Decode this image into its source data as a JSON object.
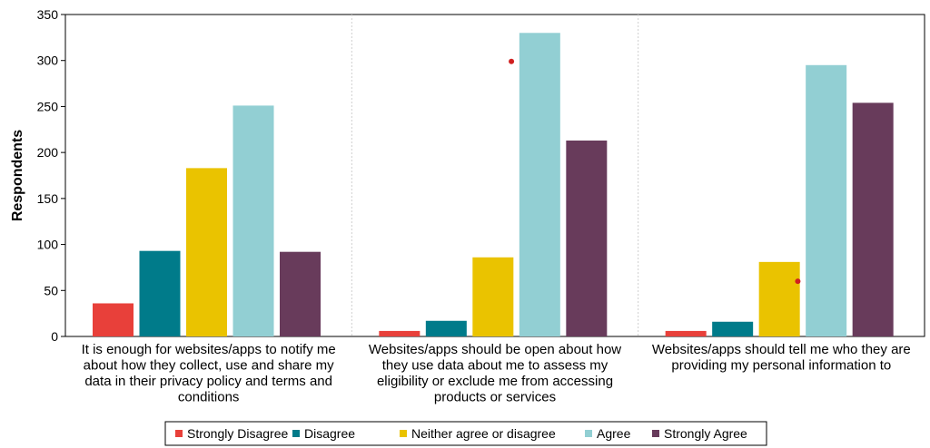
{
  "chart_data": {
    "type": "bar",
    "title": "",
    "xlabel": "",
    "ylabel": "Respondents",
    "ylim": [
      0,
      350
    ],
    "yticks": [
      0,
      50,
      100,
      150,
      200,
      250,
      300,
      350
    ],
    "categories": [
      [
        "It is enough for websites/apps to notify me",
        "about how they collect, use and share my",
        "data in their privacy policy and terms and",
        "conditions"
      ],
      [
        "Websites/apps should be open about how",
        "they use data about me to assess my",
        "eligibility or exclude me from accessing",
        "products or services"
      ],
      [
        "Websites/apps should tell me who they are",
        "providing my personal information to"
      ]
    ],
    "series": [
      {
        "name": "Strongly Disagree",
        "color": "#e8403a",
        "values": [
          36,
          6,
          6
        ]
      },
      {
        "name": "Disagree",
        "color": "#007b8a",
        "values": [
          93,
          17,
          16
        ]
      },
      {
        "name": "Neither agree or disagree",
        "color": "#eac300",
        "values": [
          183,
          86,
          81
        ]
      },
      {
        "name": "Agree",
        "color": "#92cfd3",
        "values": [
          251,
          330,
          295
        ]
      },
      {
        "name": "Strongly Agree",
        "color": "#683b5b",
        "values": [
          92,
          213,
          254
        ]
      }
    ],
    "markers": [
      {
        "category_index": 1,
        "y": 299,
        "color": "#d02020"
      },
      {
        "category_index": 2,
        "y": 60,
        "color": "#d02020"
      }
    ],
    "grid": "vertical-dotted-separators",
    "legend_position": "bottom"
  }
}
